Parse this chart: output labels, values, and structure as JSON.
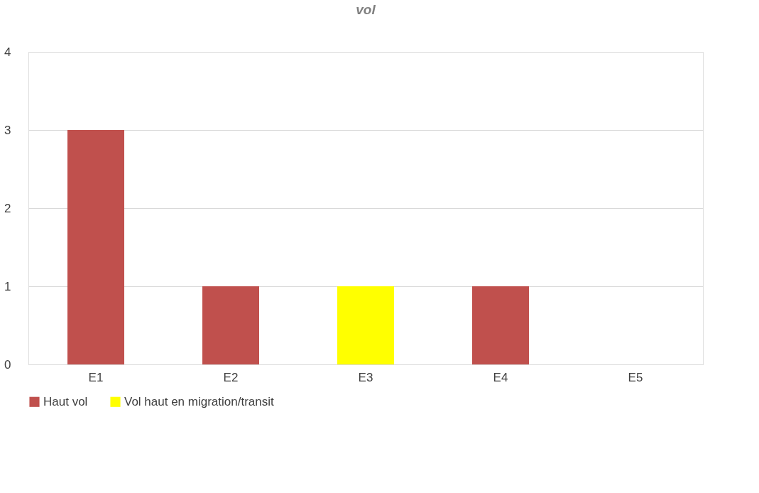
{
  "chart_data": {
    "type": "bar",
    "title": "vol",
    "stacked": true,
    "categories": [
      "E1",
      "E2",
      "E3",
      "E4",
      "E5"
    ],
    "series": [
      {
        "name": "Haut vol",
        "color": "#c0504d",
        "values": [
          3,
          1,
          0,
          1,
          0
        ]
      },
      {
        "name": "Vol haut en migration/transit",
        "color": "#ffff00",
        "values": [
          0,
          0,
          1,
          0,
          0
        ]
      }
    ],
    "ylim": [
      0,
      4
    ],
    "yticks": [
      0,
      1,
      2,
      3,
      4
    ],
    "grid": "y",
    "legend": "bottom"
  }
}
